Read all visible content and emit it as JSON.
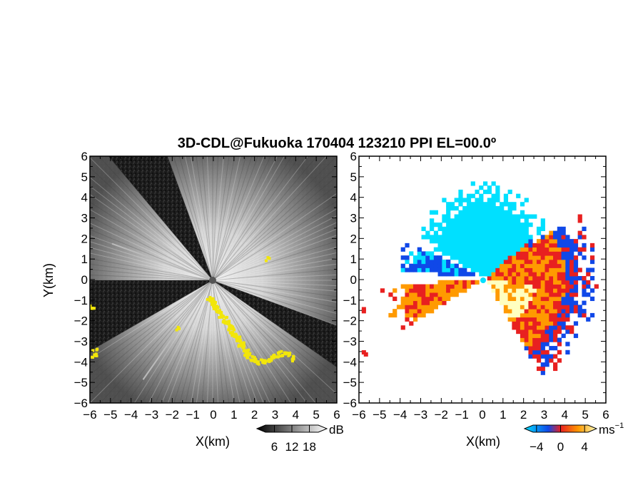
{
  "chart_data": {
    "title": "3D-CDL@Fukuoka 170404 123210 PPI EL=00.0º",
    "panels": [
      {
        "id": "reflectivity",
        "type": "heatmap",
        "xlabel": "X(km)",
        "ylabel": "Y(km)",
        "xlim": [
          -6,
          6
        ],
        "ylim": [
          -6,
          6
        ],
        "xticks": [
          "−6",
          "−5",
          "−4",
          "−3",
          "−2",
          "−1",
          "0",
          "1",
          "2",
          "3",
          "4",
          "5",
          "6"
        ],
        "yticks": [
          "6",
          "5",
          "4",
          "3",
          "2",
          "1",
          "0",
          "−1",
          "−2",
          "−3",
          "−4",
          "−5",
          "−6"
        ],
        "colorbar": {
          "label": "dB",
          "ticks": [
            "6",
            "12",
            "18"
          ],
          "values": [
            6,
            12,
            18
          ],
          "range": [
            0,
            24
          ],
          "colors": [
            "#000000",
            "#ffffff"
          ]
        },
        "background": "#1a1a1a",
        "highlight_color": "#f2e60a",
        "scan_sectors_deg": [
          [
            -150,
            -35
          ],
          [
            -20,
            110
          ],
          [
            130,
            180
          ]
        ]
      },
      {
        "id": "doppler-velocity",
        "type": "heatmap",
        "xlabel": "X(km)",
        "xlim": [
          -6,
          6
        ],
        "ylim": [
          -6,
          6
        ],
        "xticks": [
          "−6",
          "−5",
          "−4",
          "−3",
          "−2",
          "−1",
          "0",
          "1",
          "2",
          "3",
          "4",
          "5",
          "6"
        ],
        "yticks": [
          "6",
          "5",
          "4",
          "3",
          "2",
          "1",
          "0",
          "−1",
          "−2",
          "−3",
          "−4",
          "−5",
          "−6"
        ],
        "colorbar": {
          "label": "ms",
          "label_superscript": "−1",
          "ticks": [
            "−4",
            "0",
            "4"
          ],
          "values": [
            -4,
            0,
            4
          ],
          "range": [
            -6,
            6
          ],
          "colors": [
            "#00e0ff",
            "#1048e8",
            "#e82020",
            "#ff9a00",
            "#ffffc0"
          ]
        },
        "background": "#ffffff"
      }
    ]
  }
}
